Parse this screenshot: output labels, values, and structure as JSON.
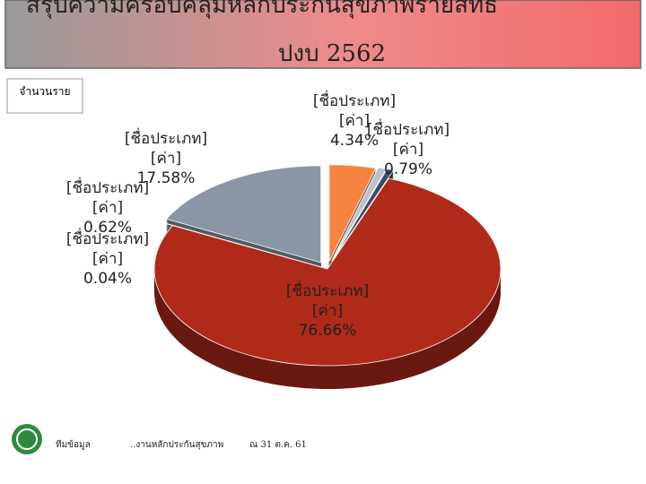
{
  "chart_data": {
    "type": "pie",
    "title": "สรุปความครอบคลุมหลักประกันสุขภาพรายสิทธิ",
    "subtitle": "ปงบ 2562",
    "unit_label": "จำนวนราย",
    "categories": [
      "[ชื่อประเภท]",
      "[ชื่อประเภท]",
      "[ชื่อประเภท]",
      "[ชื่อประเภท]",
      "[ชื่อประเภท]",
      "[ชื่อประเภท]"
    ],
    "value_placeholder": "[ค่า]",
    "values": [
      4.34,
      0.79,
      0.62,
      76.66,
      0.04,
      17.58
    ],
    "value_labels": [
      "4.34%",
      "0.79%",
      "0.62%",
      "76.66%",
      "0.04%",
      "17.58%"
    ],
    "colors": [
      "#f4843f",
      "#b4c3d3",
      "#3e4c63",
      "#b02a1a",
      "#e3d36a",
      "#8a96a3"
    ],
    "footer": [
      "ทีมข้อมูล",
      "..งานหลักประกันสุขภาพ",
      "ณ 31 ต.ค. 61"
    ]
  }
}
